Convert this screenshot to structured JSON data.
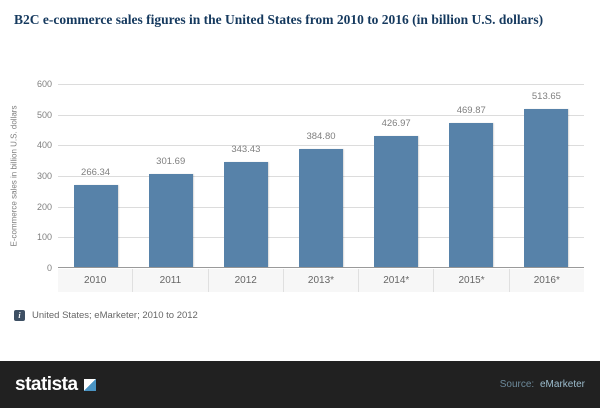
{
  "chart_data": {
    "type": "bar",
    "title": "B2C e-commerce sales figures in the United States from 2010 to 2016 (in billion U.S. dollars)",
    "categories": [
      "2010",
      "2011",
      "2012",
      "2013*",
      "2014*",
      "2015*",
      "2016*"
    ],
    "values": [
      266.34,
      301.69,
      343.43,
      384.8,
      426.97,
      469.87,
      513.65
    ],
    "value_labels": [
      "266.34",
      "301.69",
      "343.43",
      "384.80",
      "426.97",
      "469.87",
      "513.65"
    ],
    "xlabel": "",
    "ylabel": "E-commerce sales in billion U.S. dollars",
    "ylim": [
      0,
      600
    ],
    "yticks": [
      0,
      100,
      200,
      300,
      400,
      500,
      600
    ],
    "grid": true,
    "legend": false,
    "bar_color": "#5782a9"
  },
  "footnote": {
    "icon_glyph": "i",
    "text": "United States; eMarketer; 2010 to 2012"
  },
  "footer": {
    "brand": "statista",
    "source_label": "Source:",
    "source_value": "eMarketer"
  },
  "colors": {
    "bar": "#5782a9",
    "title_text": "#15395e",
    "axis_text": "#7f7f7f",
    "grid_line": "#dcdcdc",
    "footer_background": "#212121"
  }
}
